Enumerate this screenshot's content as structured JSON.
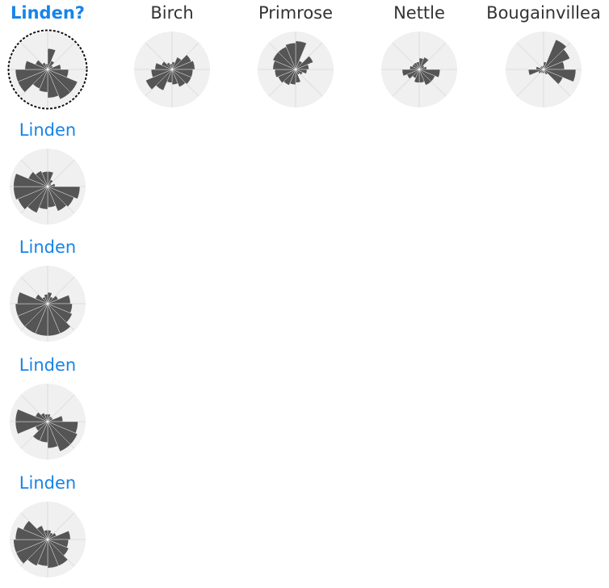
{
  "query": {
    "label": "Linden?",
    "petals": [
      0.55,
      0.25,
      0.15,
      0.35,
      0.55,
      0.85,
      0.85,
      0.75,
      0.6,
      0.55,
      0.85,
      0.85,
      0.6,
      0.35,
      0.2,
      0.15
    ]
  },
  "candidates": [
    {
      "label": "Birch",
      "petals": [
        0.2,
        0.35,
        0.55,
        0.6,
        0.55,
        0.55,
        0.5,
        0.4,
        0.35,
        0.6,
        0.75,
        0.55,
        0.45,
        0.3,
        0.2,
        0.15
      ]
    },
    {
      "label": "Primrose",
      "petals": [
        0.75,
        0.25,
        0.5,
        0.35,
        0.3,
        0.2,
        0.15,
        0.35,
        0.4,
        0.45,
        0.5,
        0.55,
        0.6,
        0.65,
        0.65,
        0.7
      ]
    },
    {
      "label": "Nettle",
      "petals": [
        0.3,
        0.35,
        0.15,
        0.2,
        0.55,
        0.45,
        0.45,
        0.35,
        0.35,
        0.25,
        0.35,
        0.45,
        0.25,
        0.2,
        0.2,
        0.2
      ]
    },
    {
      "label": "Bougainvillea",
      "petals": [
        0.2,
        0.85,
        0.75,
        0.55,
        0.85,
        0.55,
        0.15,
        0.1,
        0.1,
        0.1,
        0.15,
        0.4,
        0.2,
        0.1,
        0.1,
        0.1
      ]
    }
  ],
  "examples": [
    {
      "label": "Linden",
      "petals": [
        0.4,
        0.2,
        0.1,
        0.2,
        0.85,
        0.75,
        0.7,
        0.55,
        0.6,
        0.75,
        0.85,
        0.9,
        0.9,
        0.55,
        0.45,
        0.4
      ]
    },
    {
      "label": "Linden",
      "petals": [
        0.3,
        0.2,
        0.3,
        0.6,
        0.65,
        0.7,
        0.85,
        0.85,
        0.85,
        0.85,
        0.85,
        0.85,
        0.8,
        0.35,
        0.2,
        0.25
      ]
    },
    {
      "label": "Linden",
      "petals": [
        0.2,
        0.15,
        0.15,
        0.4,
        0.8,
        0.85,
        0.85,
        0.7,
        0.55,
        0.55,
        0.35,
        0.85,
        0.85,
        0.35,
        0.25,
        0.2
      ]
    },
    {
      "label": "Linden",
      "petals": [
        0.25,
        0.2,
        0.25,
        0.6,
        0.55,
        0.6,
        0.75,
        0.75,
        0.7,
        0.75,
        0.9,
        0.9,
        0.85,
        0.7,
        0.4,
        0.25
      ]
    }
  ],
  "colors": {
    "wedge": "#555555",
    "disc": "#f0f0f0",
    "grid": "#d9d9d9",
    "query_ring": "#111111",
    "candidate_label": "#333333",
    "example_label": "#1684e8"
  }
}
